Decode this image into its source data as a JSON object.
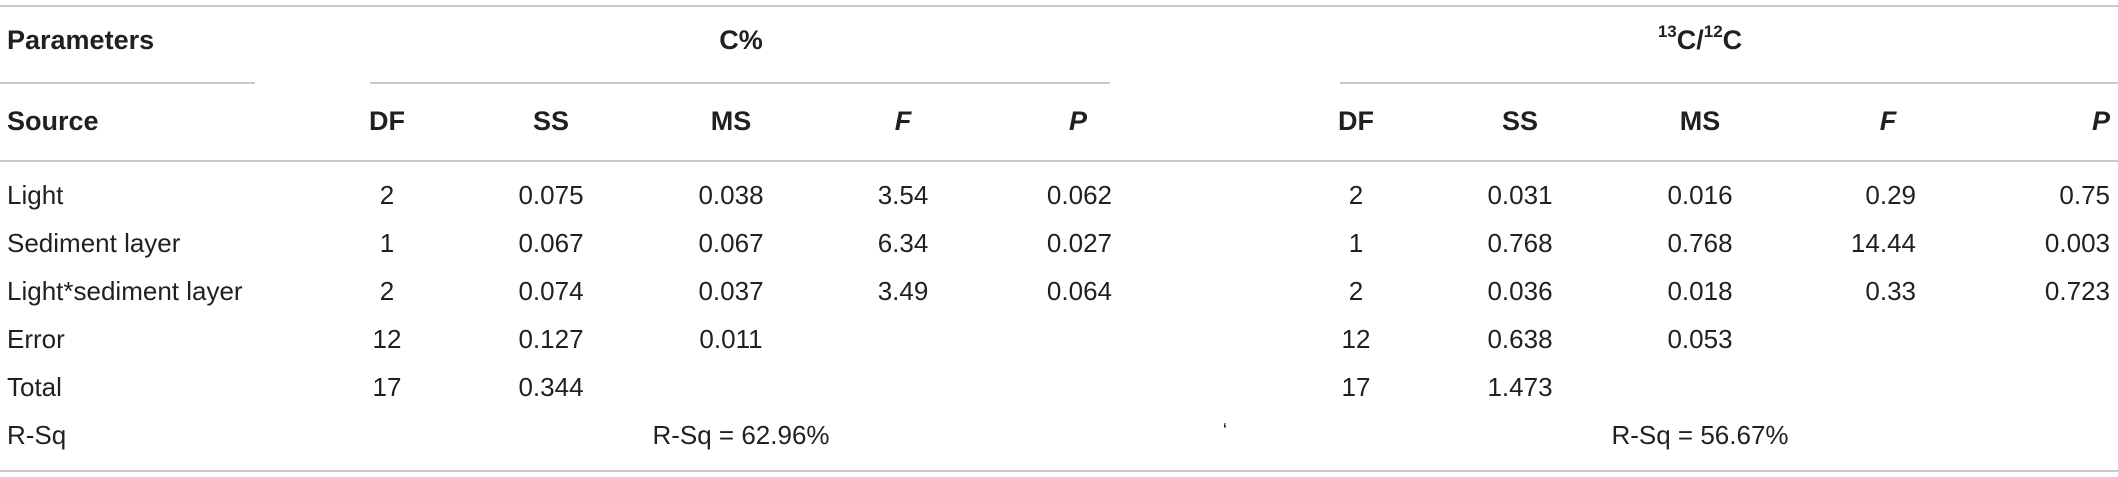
{
  "header": {
    "parameters": "Parameters",
    "group1": "C%",
    "group2_sup1": "13",
    "group2_mid": "C/",
    "group2_sup2": "12",
    "group2_end": "C",
    "source": "Source",
    "columns": [
      "DF",
      "SS",
      "MS",
      "F",
      "P"
    ]
  },
  "rows": [
    {
      "source": "Light",
      "c": [
        "2",
        "0.075",
        "0.038",
        "3.54",
        "0.062"
      ],
      "iso": [
        "2",
        "0.031",
        "0.016",
        "0.29",
        "0.75"
      ]
    },
    {
      "source": "Sediment layer",
      "c": [
        "1",
        "0.067",
        "0.067",
        "6.34",
        "0.027"
      ],
      "iso": [
        "1",
        "0.768",
        "0.768",
        "14.44",
        "0.003"
      ]
    },
    {
      "source": "Light*sediment layer",
      "c": [
        "2",
        "0.074",
        "0.037",
        "3.49",
        "0.064"
      ],
      "iso": [
        "2",
        "0.036",
        "0.018",
        "0.33",
        "0.723"
      ]
    },
    {
      "source": "Error",
      "c": [
        "12",
        "0.127",
        "0.011",
        "",
        ""
      ],
      "iso": [
        "12",
        "0.638",
        "0.053",
        "",
        ""
      ]
    },
    {
      "source": "Total",
      "c": [
        "17",
        "0.344",
        "",
        "",
        ""
      ],
      "iso": [
        "17",
        "1.473",
        "",
        "",
        ""
      ]
    }
  ],
  "rsq": {
    "label": "R-Sq",
    "c": "R-Sq = 62.96%",
    "mark": "‘",
    "iso": "R-Sq = 56.67%"
  }
}
